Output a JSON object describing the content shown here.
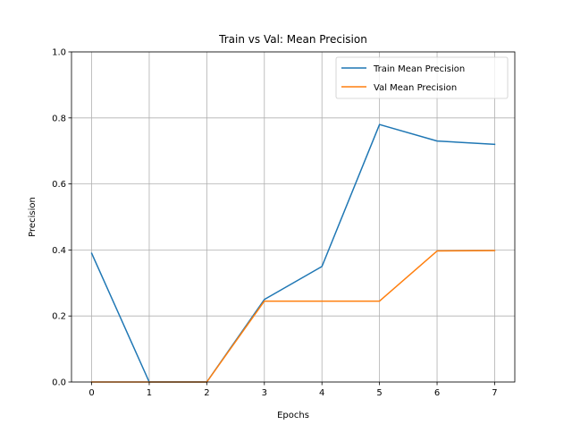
{
  "chart_data": {
    "type": "line",
    "title": "Train vs Val: Mean Precision",
    "xlabel": "Epochs",
    "ylabel": "Precision",
    "x": [
      0,
      1,
      2,
      3,
      4,
      5,
      6,
      7
    ],
    "xlim": [
      -0.35,
      7.35
    ],
    "ylim": [
      0,
      1
    ],
    "xticks": [
      0,
      1,
      2,
      3,
      4,
      5,
      6,
      7
    ],
    "yticks": [
      0,
      0.2,
      0.4,
      0.6,
      0.8,
      1
    ],
    "xtick_labels": [
      "0",
      "1",
      "2",
      "3",
      "4",
      "5",
      "6",
      "7"
    ],
    "ytick_labels": [
      "0.0",
      "0.2",
      "0.4",
      "0.6",
      "0.8",
      "1.0"
    ],
    "grid": true,
    "legend_position": "top-right",
    "series": [
      {
        "name": "Train Mean Precision",
        "color": "#1f77b4",
        "values": [
          0.39,
          0.0,
          0.0,
          0.25,
          0.35,
          0.78,
          0.73,
          0.72
        ]
      },
      {
        "name": "Val Mean Precision",
        "color": "#ff7f0e",
        "values": [
          0.0,
          0.0,
          0.0,
          0.245,
          0.245,
          0.245,
          0.397,
          0.398
        ]
      }
    ]
  }
}
